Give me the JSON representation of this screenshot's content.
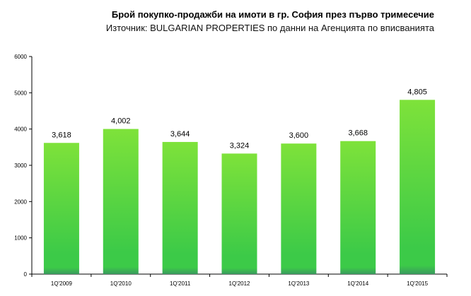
{
  "chart_data": {
    "type": "bar",
    "title": "Брой покупко-продажби на имоти в гр. София през първо тримесечие",
    "subtitle": "Източник: BULGARIAN PROPERTIES по данни на Агенцията по вписванията",
    "categories": [
      "1Q'2009",
      "1Q'2010",
      "1Q'2011",
      "1Q'2012",
      "1Q'2013",
      "1Q'2014",
      "1Q'2015"
    ],
    "values": [
      3618,
      4002,
      3644,
      3324,
      3600,
      3668,
      4805
    ],
    "data_labels": [
      "3,618",
      "4,002",
      "3,644",
      "3,324",
      "3,600",
      "3,668",
      "4,805"
    ],
    "ylim": [
      0,
      6000
    ],
    "yticks": [
      "0",
      "1000",
      "2000",
      "3000",
      "4000",
      "5000",
      "6000"
    ],
    "grid": false,
    "legend": "none",
    "colors": {
      "bar_top": "#7ee23a",
      "bar_mid": "#3cca48",
      "bar_bottom": "#3a9a5e"
    }
  }
}
